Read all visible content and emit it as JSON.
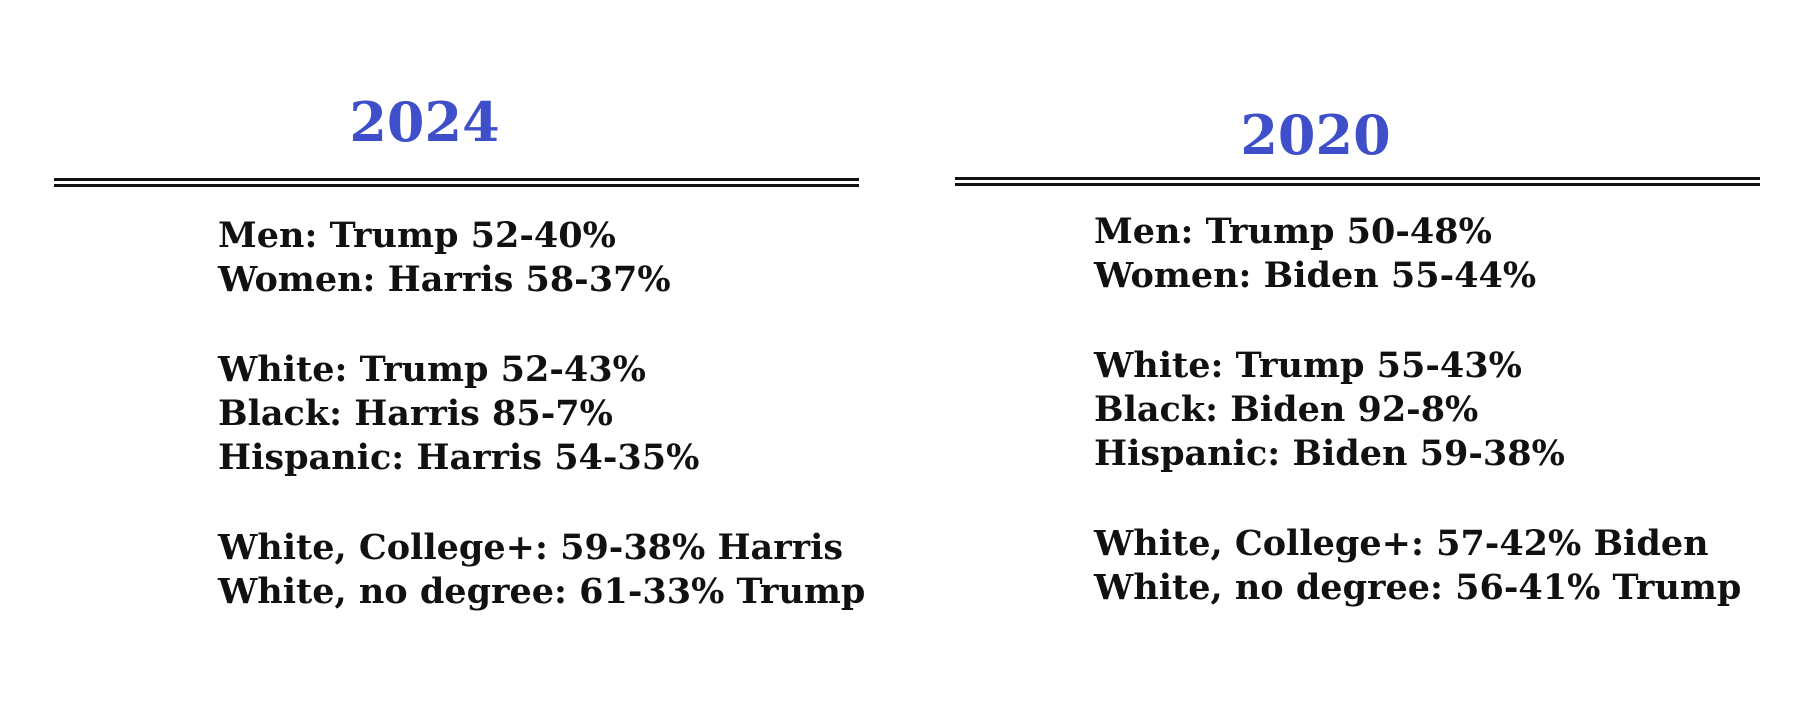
{
  "panels": [
    {
      "year": "2024",
      "groups": [
        [
          "Men: Trump 52-40%",
          "Women: Harris 58-37%"
        ],
        [
          "White: Trump 52-43%",
          "Black: Harris 85-7%",
          "Hispanic: Harris 54-35%"
        ],
        [
          "White, College+: 59-38% Harris",
          "White, no degree: 61-33% Trump"
        ]
      ]
    },
    {
      "year": "2020",
      "groups": [
        [
          "Men: Trump 50-48%",
          "Women: Biden 55-44%"
        ],
        [
          "White: Trump 55-43%",
          "Black: Biden 92-8%",
          "Hispanic: Biden 59-38%"
        ],
        [
          "White, College+: 57-42%  Biden",
          "White, no degree: 56-41% Trump"
        ]
      ]
    }
  ],
  "colors": {
    "year_title": "#3f4fc9",
    "text": "#111111",
    "rule": "#111111",
    "background": "#ffffff"
  }
}
